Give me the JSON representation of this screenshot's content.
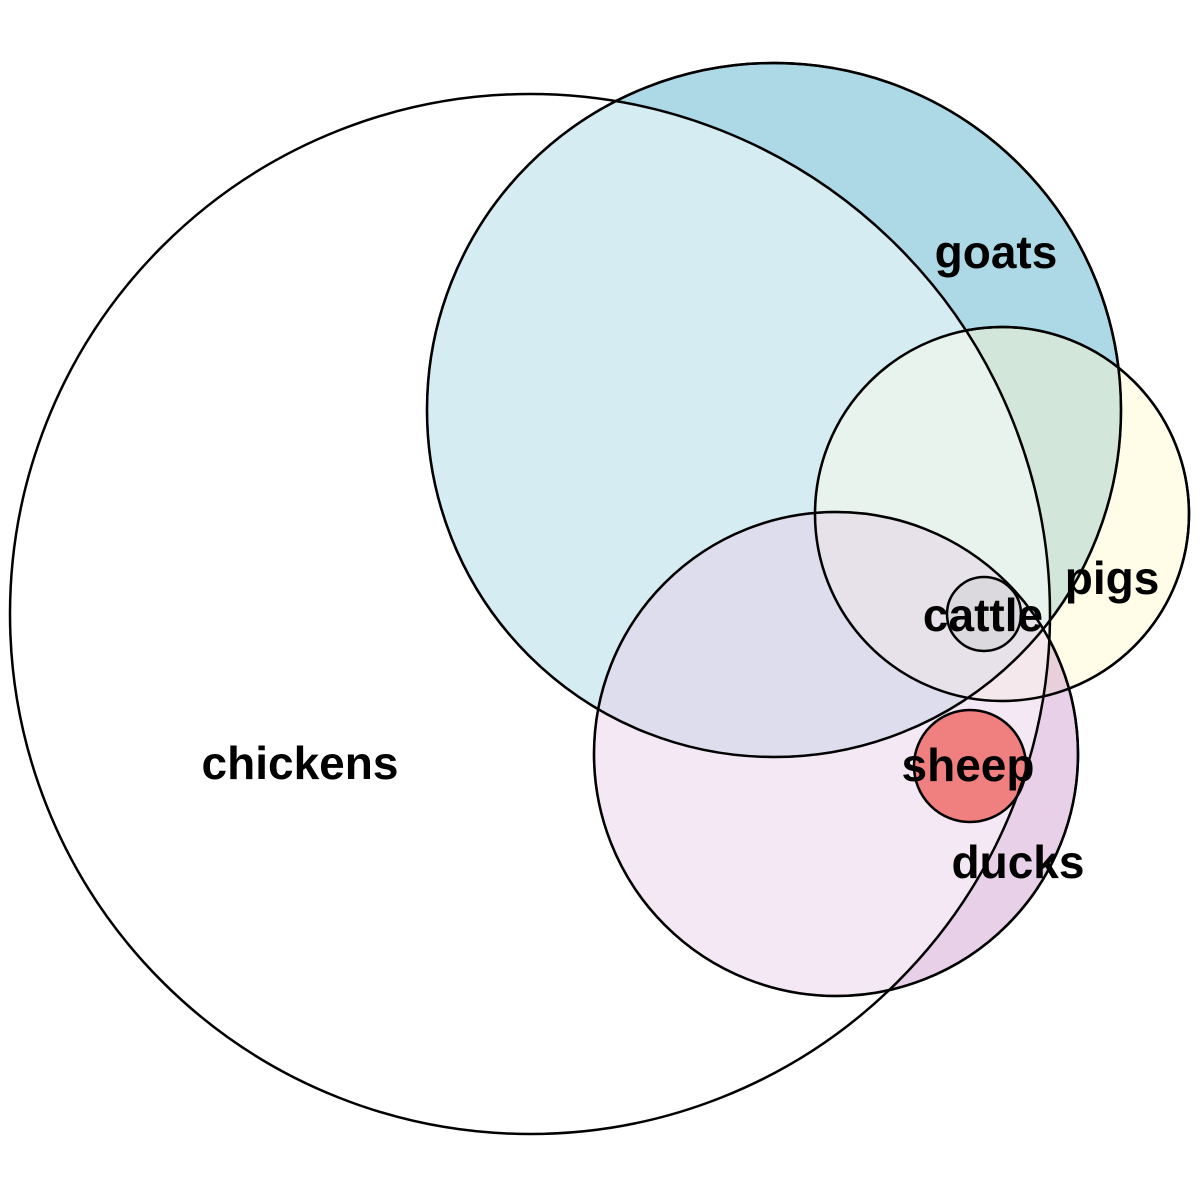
{
  "diagram": {
    "type": "euler",
    "sets": [
      {
        "id": "chickens",
        "label": "chickens",
        "color": "#ffffff"
      },
      {
        "id": "goats",
        "label": "goats",
        "color": "#add8e6"
      },
      {
        "id": "pigs",
        "label": "pigs",
        "color": "#fffacd"
      },
      {
        "id": "ducks",
        "label": "ducks",
        "color": "#cc99cc"
      },
      {
        "id": "cattle",
        "label": "cattle",
        "color": "#d3d3d3"
      },
      {
        "id": "sheep",
        "label": "sheep",
        "color": "#f08080"
      }
    ]
  }
}
